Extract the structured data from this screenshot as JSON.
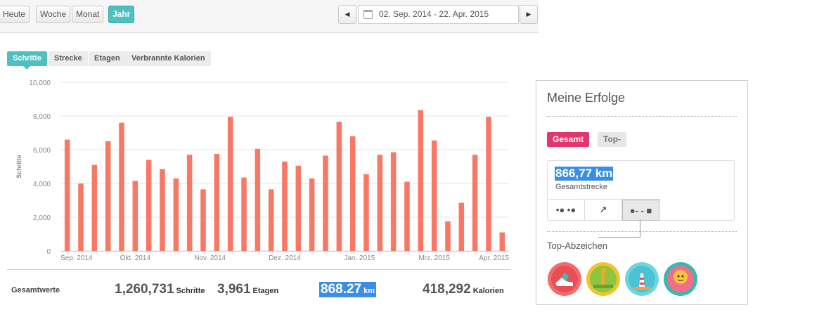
{
  "toolbar": {
    "periods": [
      {
        "label": "Heute",
        "active": false
      },
      {
        "label": "Woche",
        "active": false
      },
      {
        "label": "Monat",
        "active": false
      },
      {
        "label": "Jahr",
        "active": true
      }
    ],
    "prev_icon": "triangle-left-icon",
    "next_icon": "triangle-right-icon",
    "calendar_icon": "calendar-icon",
    "date_range": "02. Sep. 2014 - 22. Apr. 2015"
  },
  "metric_tabs": [
    {
      "label": "Schritte",
      "active": true
    },
    {
      "label": "Strecke",
      "active": false
    },
    {
      "label": "Etagen",
      "active": false
    },
    {
      "label": "Verbrannte Kalorien",
      "active": false
    }
  ],
  "chart_data": {
    "type": "bar",
    "ylabel": "Schritte",
    "ylim": [
      0,
      10000
    ],
    "yticks": [
      "0",
      "2,000",
      "4,000",
      "6,000",
      "8,000",
      "10,000"
    ],
    "xticks": [
      "Sep. 2014",
      "Okt. 2014",
      "Nov. 2014",
      "Dez. 2014",
      "Jan. 2015",
      "Mrz. 2015",
      "Apr. 2015"
    ],
    "values": [
      6600,
      4000,
      5100,
      6500,
      7600,
      4150,
      5400,
      4850,
      4300,
      5700,
      3650,
      5750,
      7950,
      4350,
      6050,
      3650,
      5300,
      5050,
      4300,
      5650,
      7650,
      6800,
      4550,
      5700,
      5850,
      4100,
      8350,
      6550,
      1750,
      2850,
      5700,
      7950,
      1100
    ],
    "bar_color": "#f87765",
    "grid": true
  },
  "totals": {
    "label": "Gesamtwerte",
    "steps": {
      "value": "1,260,731",
      "unit": "Schritte"
    },
    "floors": {
      "value": "3,961",
      "unit": "Etagen"
    },
    "distance": {
      "value": "868.27",
      "unit": "km"
    },
    "calories": {
      "value": "418,292",
      "unit": "Kalorien"
    }
  },
  "achievements": {
    "title": "Meine Erfolge",
    "tabs": [
      {
        "label": "Gesamt",
        "active": true
      },
      {
        "label": "Top-",
        "active": false
      }
    ],
    "stat_value": "866,77 km",
    "stat_label": "Gesamtstrecke",
    "stat_icons": [
      "footsteps-icon",
      "stairs-icon",
      "distance-icon"
    ],
    "badges_title": "Top-Abzeichen",
    "badges": [
      "sneaker-badge-icon",
      "giraffe-badge-icon",
      "lighthouse-badge-icon",
      "balloon-badge-icon"
    ]
  }
}
